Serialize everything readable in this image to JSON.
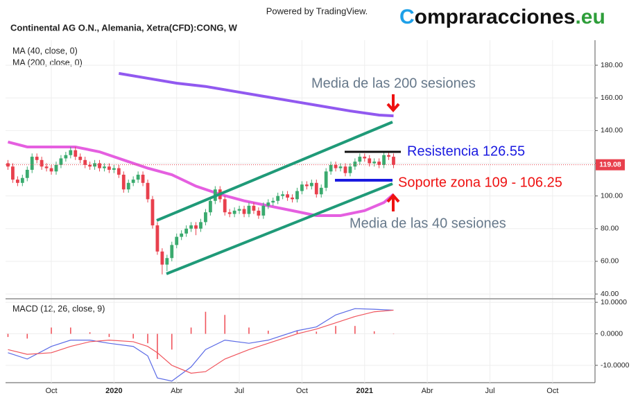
{
  "header": {
    "powered": "Powered by TradingView.",
    "logo": [
      "C",
      "ompraracciones",
      ".eu"
    ]
  },
  "chart_data": [
    {
      "type": "candlestick",
      "title": "Continental AG O.N., Alemania, Xetra(CFD):CONG, W",
      "up_color": "#3aaa6e",
      "down_color": "#e8404d",
      "x": [
        -9,
        -8,
        -7,
        -6,
        -5,
        -4,
        -3,
        -2,
        -1,
        0,
        1,
        2,
        3,
        4,
        5,
        6,
        7,
        8,
        9,
        10,
        11,
        12,
        13,
        14,
        15,
        16,
        17,
        18,
        19,
        20,
        21,
        22,
        23,
        24,
        25,
        26,
        27,
        28,
        29,
        30,
        31,
        32,
        33,
        34,
        35,
        36,
        37,
        38,
        39,
        40,
        41,
        42,
        43,
        44,
        45,
        46,
        47,
        48,
        49,
        50,
        51,
        52,
        53,
        54,
        55,
        56,
        57,
        58,
        59,
        60,
        61,
        62,
        63,
        64,
        65,
        66,
        67,
        68,
        69,
        70,
        71
      ],
      "open": [
        120,
        118,
        110,
        108,
        111,
        116,
        124,
        122,
        118,
        117,
        115,
        119,
        123,
        125,
        128,
        124,
        122,
        119,
        118,
        120,
        117,
        118,
        116,
        117,
        113,
        104,
        108,
        110,
        113,
        108,
        98,
        82,
        66,
        58,
        62,
        70,
        75,
        77,
        80,
        82,
        80,
        84,
        90,
        97,
        104,
        98,
        90,
        89,
        91,
        92,
        89,
        94,
        91,
        88,
        94,
        96,
        97,
        100,
        101,
        99,
        98,
        103,
        107,
        106,
        108,
        101,
        105,
        115,
        119,
        117,
        118,
        114,
        118,
        121,
        124,
        123,
        120,
        121,
        119,
        125,
        124
      ],
      "high": [
        122,
        120,
        112,
        113,
        118,
        126,
        126,
        124,
        120,
        119,
        121,
        125,
        127,
        130,
        130,
        126,
        124,
        121,
        122,
        122,
        120,
        120,
        119,
        119,
        115,
        110,
        112,
        115,
        115,
        110,
        100,
        84,
        68,
        64,
        72,
        77,
        79,
        82,
        84,
        84,
        86,
        92,
        99,
        106,
        106,
        100,
        92,
        93,
        94,
        94,
        96,
        96,
        93,
        96,
        98,
        99,
        102,
        103,
        103,
        101,
        105,
        109,
        109,
        110,
        110,
        107,
        117,
        121,
        121,
        120,
        120,
        120,
        123,
        126,
        126,
        125,
        123,
        123,
        127,
        127,
        126
      ],
      "low": [
        116,
        108,
        106,
        106,
        109,
        114,
        120,
        116,
        115,
        113,
        113,
        117,
        121,
        123,
        122,
        120,
        117,
        116,
        116,
        115,
        115,
        114,
        114,
        111,
        102,
        102,
        106,
        108,
        106,
        96,
        80,
        64,
        52,
        54,
        60,
        68,
        73,
        75,
        78,
        76,
        78,
        82,
        88,
        95,
        96,
        88,
        87,
        87,
        89,
        87,
        87,
        89,
        86,
        86,
        92,
        94,
        95,
        98,
        97,
        96,
        96,
        101,
        104,
        104,
        99,
        99,
        103,
        113,
        115,
        115,
        112,
        112,
        116,
        119,
        121,
        118,
        118,
        117,
        117,
        122,
        117
      ],
      "close": [
        118,
        110,
        108,
        111,
        116,
        124,
        122,
        118,
        117,
        115,
        119,
        123,
        125,
        128,
        124,
        122,
        119,
        118,
        120,
        117,
        118,
        116,
        117,
        113,
        104,
        108,
        110,
        113,
        108,
        98,
        82,
        66,
        58,
        62,
        70,
        75,
        77,
        80,
        82,
        80,
        84,
        90,
        97,
        104,
        98,
        90,
        89,
        91,
        92,
        89,
        94,
        91,
        88,
        94,
        96,
        97,
        100,
        101,
        99,
        98,
        103,
        107,
        106,
        108,
        101,
        105,
        115,
        119,
        117,
        118,
        114,
        118,
        121,
        124,
        123,
        120,
        121,
        119,
        125,
        124,
        119.08
      ],
      "last_price_label": "119.08",
      "last_price_color": "#e8404d",
      "overlays": [
        {
          "name": "MA (40, close, 0)",
          "color": "#e55fe0",
          "x": [
            -9,
            -5,
            0,
            5,
            10,
            15,
            20,
            25,
            30,
            35,
            40,
            45,
            50,
            55,
            60,
            65,
            69,
            71
          ],
          "values": [
            133,
            130,
            130,
            130,
            127,
            122,
            117,
            113,
            106,
            101,
            97,
            94,
            91,
            88,
            88,
            91,
            96,
            101
          ]
        },
        {
          "name": "MA (200, close, 0)",
          "color": "#9159f0",
          "x": [
            14,
            20,
            26,
            32,
            38,
            44,
            50,
            56,
            62,
            68,
            71
          ],
          "values": [
            175,
            172,
            169,
            167,
            164,
            161,
            158,
            155,
            152,
            149.5,
            149
          ]
        }
      ],
      "xlim": [
        -9.5,
        112.8
      ],
      "xticks": [
        {
          "value": 0,
          "label": "Oct"
        },
        {
          "value": 13,
          "label": "2020"
        },
        {
          "value": 26,
          "label": "Abr"
        },
        {
          "value": 39,
          "label": "Jul"
        },
        {
          "value": 52,
          "label": "Oct"
        },
        {
          "value": 65,
          "label": "2021"
        },
        {
          "value": 78,
          "label": "Abr"
        },
        {
          "value": 91,
          "label": "Jul"
        },
        {
          "value": 104,
          "label": "Oct"
        }
      ],
      "ylim": [
        37.5,
        195.3
      ],
      "yticks": [
        {
          "value": 40,
          "label": "40.00"
        },
        {
          "value": 60,
          "label": "60.00"
        },
        {
          "value": 80,
          "label": "80.00"
        },
        {
          "value": 100,
          "label": "100.00"
        },
        {
          "value": 120,
          "label": "120.00"
        },
        {
          "value": 140,
          "label": "140.00"
        },
        {
          "value": 160,
          "label": "160.00"
        },
        {
          "value": 180,
          "label": "180.00"
        }
      ],
      "annotations": [
        "Media de las 200 sesiones",
        "Resistencia 126.55",
        "Soporte zona 109 - 106.25",
        "Media de las 40 sesiones"
      ]
    },
    {
      "type": "line",
      "title": "MACD (12, 26, close, 9)",
      "x": [
        -9,
        -5,
        0,
        4,
        8,
        12,
        17,
        20,
        22,
        25,
        29,
        32,
        36,
        41,
        45,
        51,
        55,
        59,
        63,
        67,
        71
      ],
      "series": [
        {
          "name": "MACD",
          "color": "#5a6ae6",
          "values": [
            -6,
            -8,
            -4,
            -2,
            -2,
            -3,
            -4,
            -7,
            -14,
            -15,
            -10.5,
            -5,
            -2,
            -3,
            -2,
            1,
            2.2,
            6,
            8,
            7.8,
            7.5
          ]
        },
        {
          "name": "Signal",
          "color": "#f0545c",
          "values": [
            -5,
            -6.5,
            -6,
            -4,
            -2.5,
            -2,
            -2.5,
            -4,
            -6,
            -10,
            -12.5,
            -12,
            -8,
            -5,
            -3,
            0,
            1.5,
            3.5,
            5.5,
            7,
            7.5
          ]
        }
      ],
      "histogram": {
        "color": "#f0545c",
        "values": [
          -1,
          -1.5,
          2,
          2,
          0.5,
          -1,
          -1.5,
          -3,
          -8,
          -5,
          2,
          7,
          6,
          2,
          1,
          1,
          0.7,
          2.5,
          2.5,
          0.8,
          0
        ]
      },
      "ylim": [
        -15.5,
        10.9
      ],
      "yticks": [
        {
          "value": -10,
          "label": "-10.0000"
        },
        {
          "value": 0,
          "label": "0.0000"
        },
        {
          "value": 10,
          "label": "10.0000"
        }
      ]
    }
  ]
}
